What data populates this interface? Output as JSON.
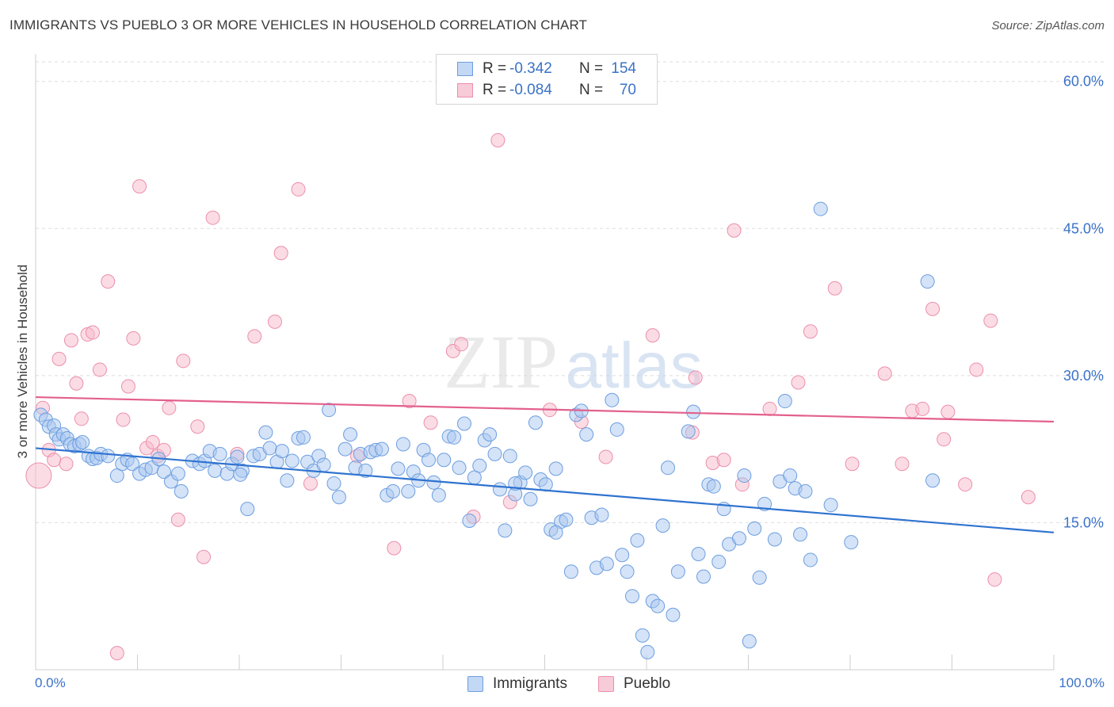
{
  "title": "IMMIGRANTS VS PUEBLO 3 OR MORE VEHICLES IN HOUSEHOLD CORRELATION CHART",
  "source": "Source: ZipAtlas.com",
  "watermark": {
    "zip": "ZIP",
    "atlas": "atlas"
  },
  "legend": {
    "rows": [
      {
        "r_label": "R =",
        "r_value": "-0.342",
        "n_label": "N =",
        "n_value": "154"
      },
      {
        "r_label": "R =",
        "r_value": "-0.084",
        "n_label": "N =",
        "n_value": "70"
      }
    ]
  },
  "bottom_legend": {
    "immigrants": "Immigrants",
    "pueblo": "Pueblo"
  },
  "axis_labels": {
    "x_min": "0.0%",
    "x_max": "100.0%"
  },
  "colors": {
    "immigrants_fill": "#a9c8f0",
    "immigrants_stroke": "#6d9ee0",
    "immigrants_line": "#2f73d0",
    "pueblo_fill": "#f7b9cb",
    "pueblo_stroke": "#ec8fab",
    "pueblo_line": "#e3608d",
    "tick_text": "#3a72c8",
    "grid": "#dedede"
  },
  "chart_data": {
    "type": "scatter",
    "title": "IMMIGRANTS VS PUEBLO 3 OR MORE VEHICLES IN HOUSEHOLD CORRELATION CHART",
    "xlabel": "",
    "ylabel": "3 or more Vehicles in Household",
    "xlim": [
      0,
      100
    ],
    "ylim": [
      0,
      62
    ],
    "yticks": [
      15,
      30,
      45,
      60
    ],
    "ytick_labels": [
      "15.0%",
      "30.0%",
      "45.0%",
      "60.0%"
    ],
    "xticks": [
      0,
      10,
      20,
      30,
      40,
      50,
      60,
      70,
      80,
      90,
      100
    ],
    "grid": true,
    "legend_position": "top-center",
    "series": [
      {
        "name": "Immigrants",
        "trend": {
          "x": [
            0,
            100
          ],
          "y": [
            22.6,
            14.0
          ]
        },
        "points": [
          [
            0.5,
            26.0
          ],
          [
            1,
            25.5
          ],
          [
            1.3,
            24.8
          ],
          [
            1.8,
            24.9
          ],
          [
            2,
            24.0
          ],
          [
            2.3,
            23.5
          ],
          [
            2.7,
            24.0
          ],
          [
            3.1,
            23.6
          ],
          [
            3.4,
            23.0
          ],
          [
            3.8,
            22.8
          ],
          [
            4.3,
            23.0
          ],
          [
            4.6,
            23.2
          ],
          [
            5.2,
            21.8
          ],
          [
            5.6,
            21.5
          ],
          [
            6.0,
            21.6
          ],
          [
            6.4,
            22.0
          ],
          [
            7.1,
            21.8
          ],
          [
            8.0,
            19.8
          ],
          [
            8.5,
            21.0
          ],
          [
            9.0,
            21.4
          ],
          [
            9.5,
            21.0
          ],
          [
            10.2,
            20.0
          ],
          [
            10.8,
            20.4
          ],
          [
            11.4,
            20.6
          ],
          [
            12.1,
            21.5
          ],
          [
            12.6,
            20.2
          ],
          [
            13.3,
            19.2
          ],
          [
            14.0,
            20.0
          ],
          [
            14.3,
            18.2
          ],
          [
            15.4,
            21.3
          ],
          [
            16.1,
            21.0
          ],
          [
            16.6,
            21.3
          ],
          [
            17.1,
            22.3
          ],
          [
            17.6,
            20.3
          ],
          [
            18.1,
            22.0
          ],
          [
            18.8,
            20.0
          ],
          [
            19.3,
            21.0
          ],
          [
            19.8,
            21.7
          ],
          [
            20.3,
            20.3
          ],
          [
            20.8,
            16.4
          ],
          [
            21.4,
            21.8
          ],
          [
            22.0,
            22.0
          ],
          [
            22.6,
            24.2
          ],
          [
            23.0,
            22.6
          ],
          [
            23.7,
            21.2
          ],
          [
            24.2,
            22.3
          ],
          [
            24.7,
            19.3
          ],
          [
            25.2,
            21.3
          ],
          [
            25.8,
            23.6
          ],
          [
            26.3,
            23.7
          ],
          [
            26.7,
            21.2
          ],
          [
            27.3,
            20.3
          ],
          [
            27.8,
            21.8
          ],
          [
            28.3,
            20.9
          ],
          [
            28.8,
            26.5
          ],
          [
            29.3,
            19.0
          ],
          [
            29.8,
            17.6
          ],
          [
            30.4,
            22.5
          ],
          [
            30.9,
            24.0
          ],
          [
            31.4,
            20.6
          ],
          [
            31.9,
            22.0
          ],
          [
            32.4,
            20.3
          ],
          [
            32.9,
            22.2
          ],
          [
            33.4,
            22.4
          ],
          [
            34.0,
            22.5
          ],
          [
            34.5,
            17.8
          ],
          [
            35.1,
            18.2
          ],
          [
            35.6,
            20.5
          ],
          [
            36.1,
            23.0
          ],
          [
            36.6,
            18.2
          ],
          [
            37.1,
            20.2
          ],
          [
            37.6,
            19.3
          ],
          [
            38.1,
            22.4
          ],
          [
            38.6,
            21.4
          ],
          [
            39.1,
            19.1
          ],
          [
            39.6,
            17.8
          ],
          [
            40.1,
            21.4
          ],
          [
            40.6,
            23.8
          ],
          [
            41.1,
            23.7
          ],
          [
            41.6,
            20.6
          ],
          [
            42.1,
            25.1
          ],
          [
            42.6,
            15.2
          ],
          [
            43.1,
            19.6
          ],
          [
            43.6,
            20.8
          ],
          [
            44.1,
            23.4
          ],
          [
            44.6,
            24.0
          ],
          [
            45.1,
            22.0
          ],
          [
            45.6,
            18.4
          ],
          [
            46.1,
            14.2
          ],
          [
            46.6,
            21.8
          ],
          [
            47.1,
            17.9
          ],
          [
            47.6,
            19.1
          ],
          [
            48.1,
            20.1
          ],
          [
            48.6,
            17.4
          ],
          [
            49.1,
            25.2
          ],
          [
            49.6,
            19.4
          ],
          [
            50.1,
            18.9
          ],
          [
            50.6,
            14.3
          ],
          [
            51.1,
            20.5
          ],
          [
            51.6,
            15.1
          ],
          [
            52.1,
            15.3
          ],
          [
            52.6,
            10.0
          ],
          [
            53.1,
            26.0
          ],
          [
            53.6,
            26.4
          ],
          [
            54.1,
            24.0
          ],
          [
            54.6,
            15.5
          ],
          [
            55.1,
            10.4
          ],
          [
            55.6,
            15.8
          ],
          [
            56.1,
            10.8
          ],
          [
            56.6,
            27.5
          ],
          [
            57.1,
            24.5
          ],
          [
            57.6,
            11.7
          ],
          [
            58.1,
            10.0
          ],
          [
            58.6,
            7.5
          ],
          [
            59.1,
            13.2
          ],
          [
            59.6,
            3.5
          ],
          [
            60.1,
            1.8
          ],
          [
            60.6,
            7.0
          ],
          [
            61.1,
            6.5
          ],
          [
            61.6,
            14.7
          ],
          [
            62.1,
            20.6
          ],
          [
            62.6,
            5.6
          ],
          [
            63.1,
            10.0
          ],
          [
            64.1,
            24.3
          ],
          [
            64.6,
            26.3
          ],
          [
            65.1,
            11.8
          ],
          [
            65.6,
            9.5
          ],
          [
            66.1,
            18.9
          ],
          [
            66.6,
            18.7
          ],
          [
            67.1,
            11.0
          ],
          [
            67.6,
            16.4
          ],
          [
            68.1,
            12.8
          ],
          [
            69.1,
            13.4
          ],
          [
            69.6,
            19.8
          ],
          [
            70.1,
            2.9
          ],
          [
            70.6,
            14.4
          ],
          [
            71.1,
            9.4
          ],
          [
            71.6,
            16.9
          ],
          [
            72.6,
            13.3
          ],
          [
            73.1,
            19.2
          ],
          [
            73.6,
            27.4
          ],
          [
            74.1,
            19.8
          ],
          [
            74.6,
            18.5
          ],
          [
            75.1,
            13.8
          ],
          [
            75.6,
            18.2
          ],
          [
            76.1,
            11.2
          ],
          [
            77.1,
            47.0
          ],
          [
            78.1,
            16.8
          ],
          [
            80.1,
            13.0
          ],
          [
            87.6,
            39.6
          ],
          [
            88.1,
            19.3
          ],
          [
            20.1,
            19.9
          ],
          [
            47.1,
            19.0
          ],
          [
            51.1,
            14.0
          ]
        ]
      },
      {
        "name": "Pueblo",
        "trend": {
          "x": [
            0,
            100
          ],
          "y": [
            27.8,
            25.3
          ]
        },
        "points": [
          [
            0.3,
            19.8
          ],
          [
            0.7,
            26.7
          ],
          [
            1.3,
            22.4
          ],
          [
            1.8,
            21.4
          ],
          [
            2.3,
            31.7
          ],
          [
            3.0,
            21.0
          ],
          [
            3.5,
            33.6
          ],
          [
            4.0,
            29.2
          ],
          [
            4.5,
            25.6
          ],
          [
            5.1,
            34.2
          ],
          [
            5.6,
            34.4
          ],
          [
            6.3,
            30.6
          ],
          [
            7.1,
            39.6
          ],
          [
            8.0,
            1.7
          ],
          [
            8.6,
            25.5
          ],
          [
            9.1,
            28.9
          ],
          [
            9.6,
            33.8
          ],
          [
            10.2,
            49.3
          ],
          [
            10.9,
            22.6
          ],
          [
            11.5,
            23.2
          ],
          [
            12.0,
            21.8
          ],
          [
            12.6,
            22.4
          ],
          [
            13.1,
            26.7
          ],
          [
            14.0,
            15.3
          ],
          [
            14.5,
            31.5
          ],
          [
            15.9,
            24.8
          ],
          [
            16.5,
            11.5
          ],
          [
            17.4,
            46.1
          ],
          [
            19.8,
            22.0
          ],
          [
            21.5,
            34.0
          ],
          [
            23.5,
            35.5
          ],
          [
            24.1,
            42.5
          ],
          [
            25.8,
            49.0
          ],
          [
            27.0,
            19.0
          ],
          [
            31.6,
            21.8
          ],
          [
            35.2,
            12.4
          ],
          [
            36.7,
            27.4
          ],
          [
            38.8,
            25.2
          ],
          [
            41.0,
            32.5
          ],
          [
            41.8,
            33.2
          ],
          [
            43.0,
            15.6
          ],
          [
            45.4,
            54.0
          ],
          [
            46.6,
            17.1
          ],
          [
            50.5,
            26.5
          ],
          [
            53.6,
            25.3
          ],
          [
            56.0,
            21.7
          ],
          [
            60.6,
            34.1
          ],
          [
            64.5,
            24.2
          ],
          [
            64.8,
            29.8
          ],
          [
            66.5,
            21.1
          ],
          [
            67.6,
            21.4
          ],
          [
            68.6,
            44.8
          ],
          [
            69.4,
            18.9
          ],
          [
            72.1,
            26.6
          ],
          [
            74.9,
            29.3
          ],
          [
            76.1,
            34.5
          ],
          [
            78.5,
            38.9
          ],
          [
            80.2,
            21.0
          ],
          [
            83.4,
            30.2
          ],
          [
            85.1,
            21.0
          ],
          [
            86.1,
            26.4
          ],
          [
            87.1,
            26.6
          ],
          [
            88.1,
            36.8
          ],
          [
            89.2,
            23.5
          ],
          [
            89.6,
            26.3
          ],
          [
            91.3,
            18.9
          ],
          [
            92.4,
            30.6
          ],
          [
            93.8,
            35.6
          ],
          [
            94.2,
            9.2
          ],
          [
            97.5,
            17.6
          ]
        ]
      }
    ]
  }
}
